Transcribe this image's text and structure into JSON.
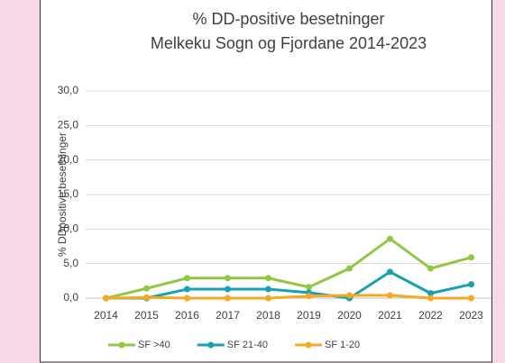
{
  "chart_data": {
    "type": "line",
    "title": "% DD-positive besetninger",
    "subtitle": "Melkeku Sogn og Fjordane 2014-2023",
    "y_label": "% DDpositive besetninger",
    "categories": [
      "2014",
      "2015",
      "2016",
      "2017",
      "2018",
      "2019",
      "2020",
      "2021",
      "2022",
      "2023"
    ],
    "series": [
      {
        "name": "SF >40",
        "color": "#92c645",
        "values": [
          0,
          1.4,
          2.9,
          2.9,
          2.9,
          1.6,
          4.3,
          8.6,
          4.3,
          5.9
        ]
      },
      {
        "name": "SF 21-40",
        "color": "#17a2b1",
        "values": [
          0,
          0,
          1.3,
          1.3,
          1.3,
          0.8,
          0,
          3.8,
          0.7,
          2.0
        ]
      },
      {
        "name": "SF 1-20",
        "color": "#f7a823",
        "values": [
          0,
          0.1,
          0,
          0,
          0,
          0.3,
          0.4,
          0.4,
          0,
          0
        ]
      }
    ],
    "ylim": [
      0,
      30
    ],
    "yticks": [
      {
        "value": 0,
        "label": "0,0"
      },
      {
        "value": 5,
        "label": "5,0"
      },
      {
        "value": 10,
        "label": "10,0"
      },
      {
        "value": 15,
        "label": "15,0"
      },
      {
        "value": 20,
        "label": "20,0"
      },
      {
        "value": 25,
        "label": "25,0"
      },
      {
        "value": 30,
        "label": "30,0"
      }
    ],
    "grid": true,
    "legend": "bottom"
  }
}
